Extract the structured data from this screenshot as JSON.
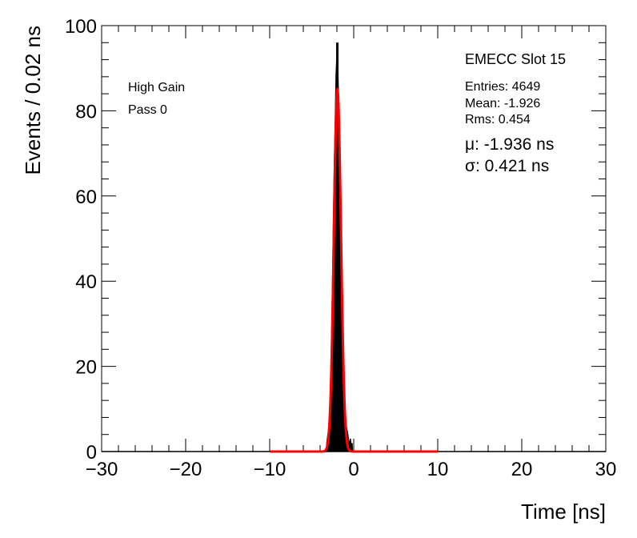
{
  "chart_data": {
    "type": "histogram",
    "title": "EMECC Slot 15",
    "xlabel": "Time [ns]",
    "ylabel": "Events / 0.02 ns",
    "xlim": [
      -30,
      30
    ],
    "ylim": [
      0,
      100
    ],
    "x_ticks": [
      -30,
      -20,
      -10,
      0,
      10,
      20,
      30
    ],
    "x_tick_labels": [
      "−30",
      "−20",
      "−10",
      "0",
      "10",
      "20",
      "30"
    ],
    "y_ticks": [
      0,
      20,
      40,
      60,
      80,
      100
    ],
    "y_tick_labels": [
      "0",
      "20",
      "40",
      "60",
      "80",
      "100"
    ],
    "grid": false,
    "annotations_left": [
      "High Gain",
      "Pass 0"
    ],
    "stats": [
      "Entries: 4649",
      "Mean: -1.926",
      "Rms: 0.454"
    ],
    "fit_results": [
      "μ: -1.936 ns",
      "σ: 0.421 ns"
    ],
    "series": [
      {
        "kind": "histogram",
        "color": "#000000",
        "bin_width": 0.02,
        "entries": 4649,
        "mean": -1.926,
        "rms": 0.454,
        "peak_x": -1.95,
        "peak_y": 96,
        "x": [
          -3.2,
          -3.0,
          -2.9,
          -2.8,
          -2.7,
          -2.6,
          -2.5,
          -2.4,
          -2.3,
          -2.2,
          -2.1,
          -2.0,
          -1.95,
          -1.9,
          -1.8,
          -1.7,
          -1.6,
          -1.5,
          -1.4,
          -1.3,
          -1.2,
          -1.1,
          -1.0,
          -0.9,
          -0.8,
          -0.7,
          -0.6,
          -0.5,
          -0.4,
          -0.3,
          -0.2
        ],
        "values": [
          2,
          5,
          8,
          12,
          20,
          30,
          42,
          56,
          68,
          77,
          88,
          93,
          96,
          90,
          82,
          72,
          60,
          48,
          36,
          26,
          18,
          12,
          9,
          6,
          5,
          4,
          2,
          2,
          3,
          1,
          2
        ]
      },
      {
        "kind": "gaussian_fit",
        "color": "#ff0000",
        "mu": -1.936,
        "sigma": 0.421,
        "amplitude": 85,
        "x_range": [
          -10,
          10
        ]
      }
    ]
  }
}
